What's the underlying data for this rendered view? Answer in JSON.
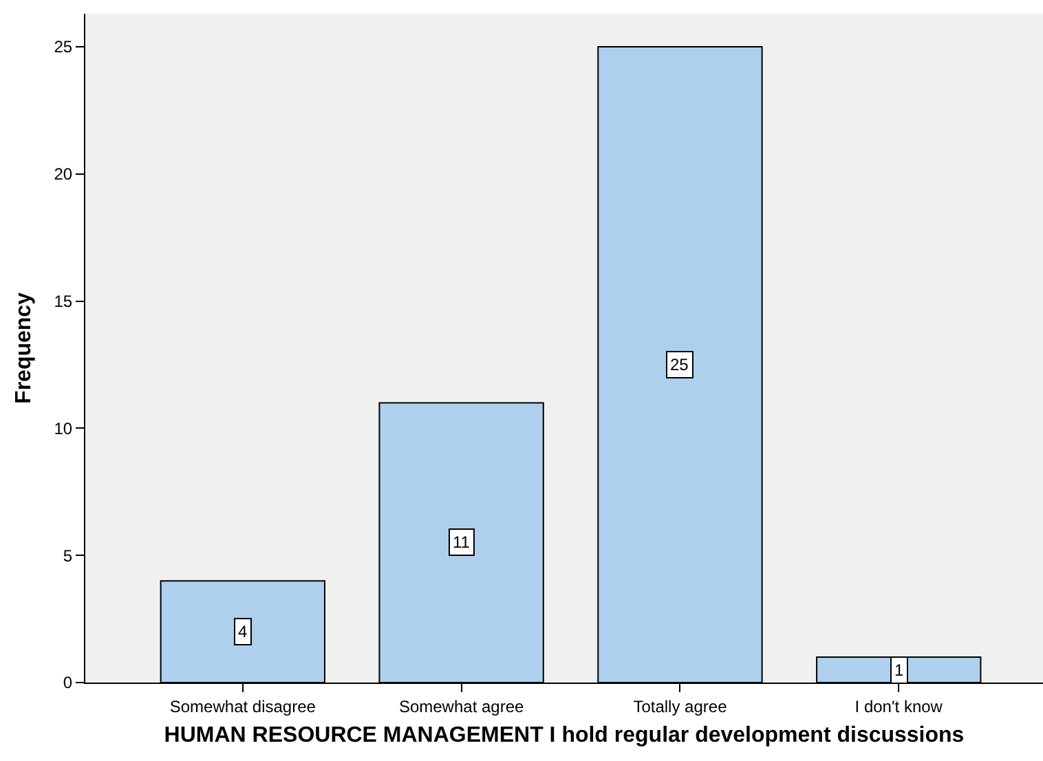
{
  "chart_data": {
    "type": "bar",
    "xlabel": "HUMAN RESOURCE MANAGEMENT I hold regular development discussions",
    "ylabel": "Frequency",
    "categories": [
      "Somewhat disagree",
      "Somewhat agree",
      "Totally agree",
      "I don't know"
    ],
    "values": [
      4,
      11,
      25,
      1
    ],
    "color": "#aed0ee",
    "data_labels": true,
    "ylim": [
      0,
      26.3
    ],
    "yticks": [
      0,
      5,
      10,
      15,
      20,
      25
    ],
    "grid": false,
    "legend": false
  }
}
